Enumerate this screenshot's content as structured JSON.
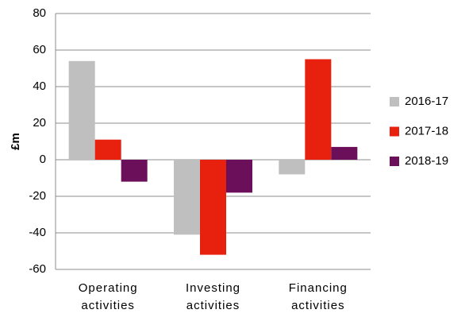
{
  "chart_data": {
    "type": "bar",
    "ylabel": "£m",
    "categories": [
      "Operating activities",
      "Investing activities",
      "Financing activities"
    ],
    "series": [
      {
        "name": "2016-17",
        "color": "#bfbfbf",
        "values": [
          54,
          -41,
          -8
        ]
      },
      {
        "name": "2017-18",
        "color": "#e8210f",
        "values": [
          11,
          -52,
          55
        ]
      },
      {
        "name": "2018-19",
        "color": "#6b0f5a",
        "values": [
          -12,
          -18,
          7
        ]
      }
    ],
    "ylim": [
      -60,
      80
    ],
    "yticks": [
      -60,
      -40,
      -20,
      0,
      20,
      40,
      60,
      80
    ],
    "grid": true,
    "legend": "right"
  }
}
